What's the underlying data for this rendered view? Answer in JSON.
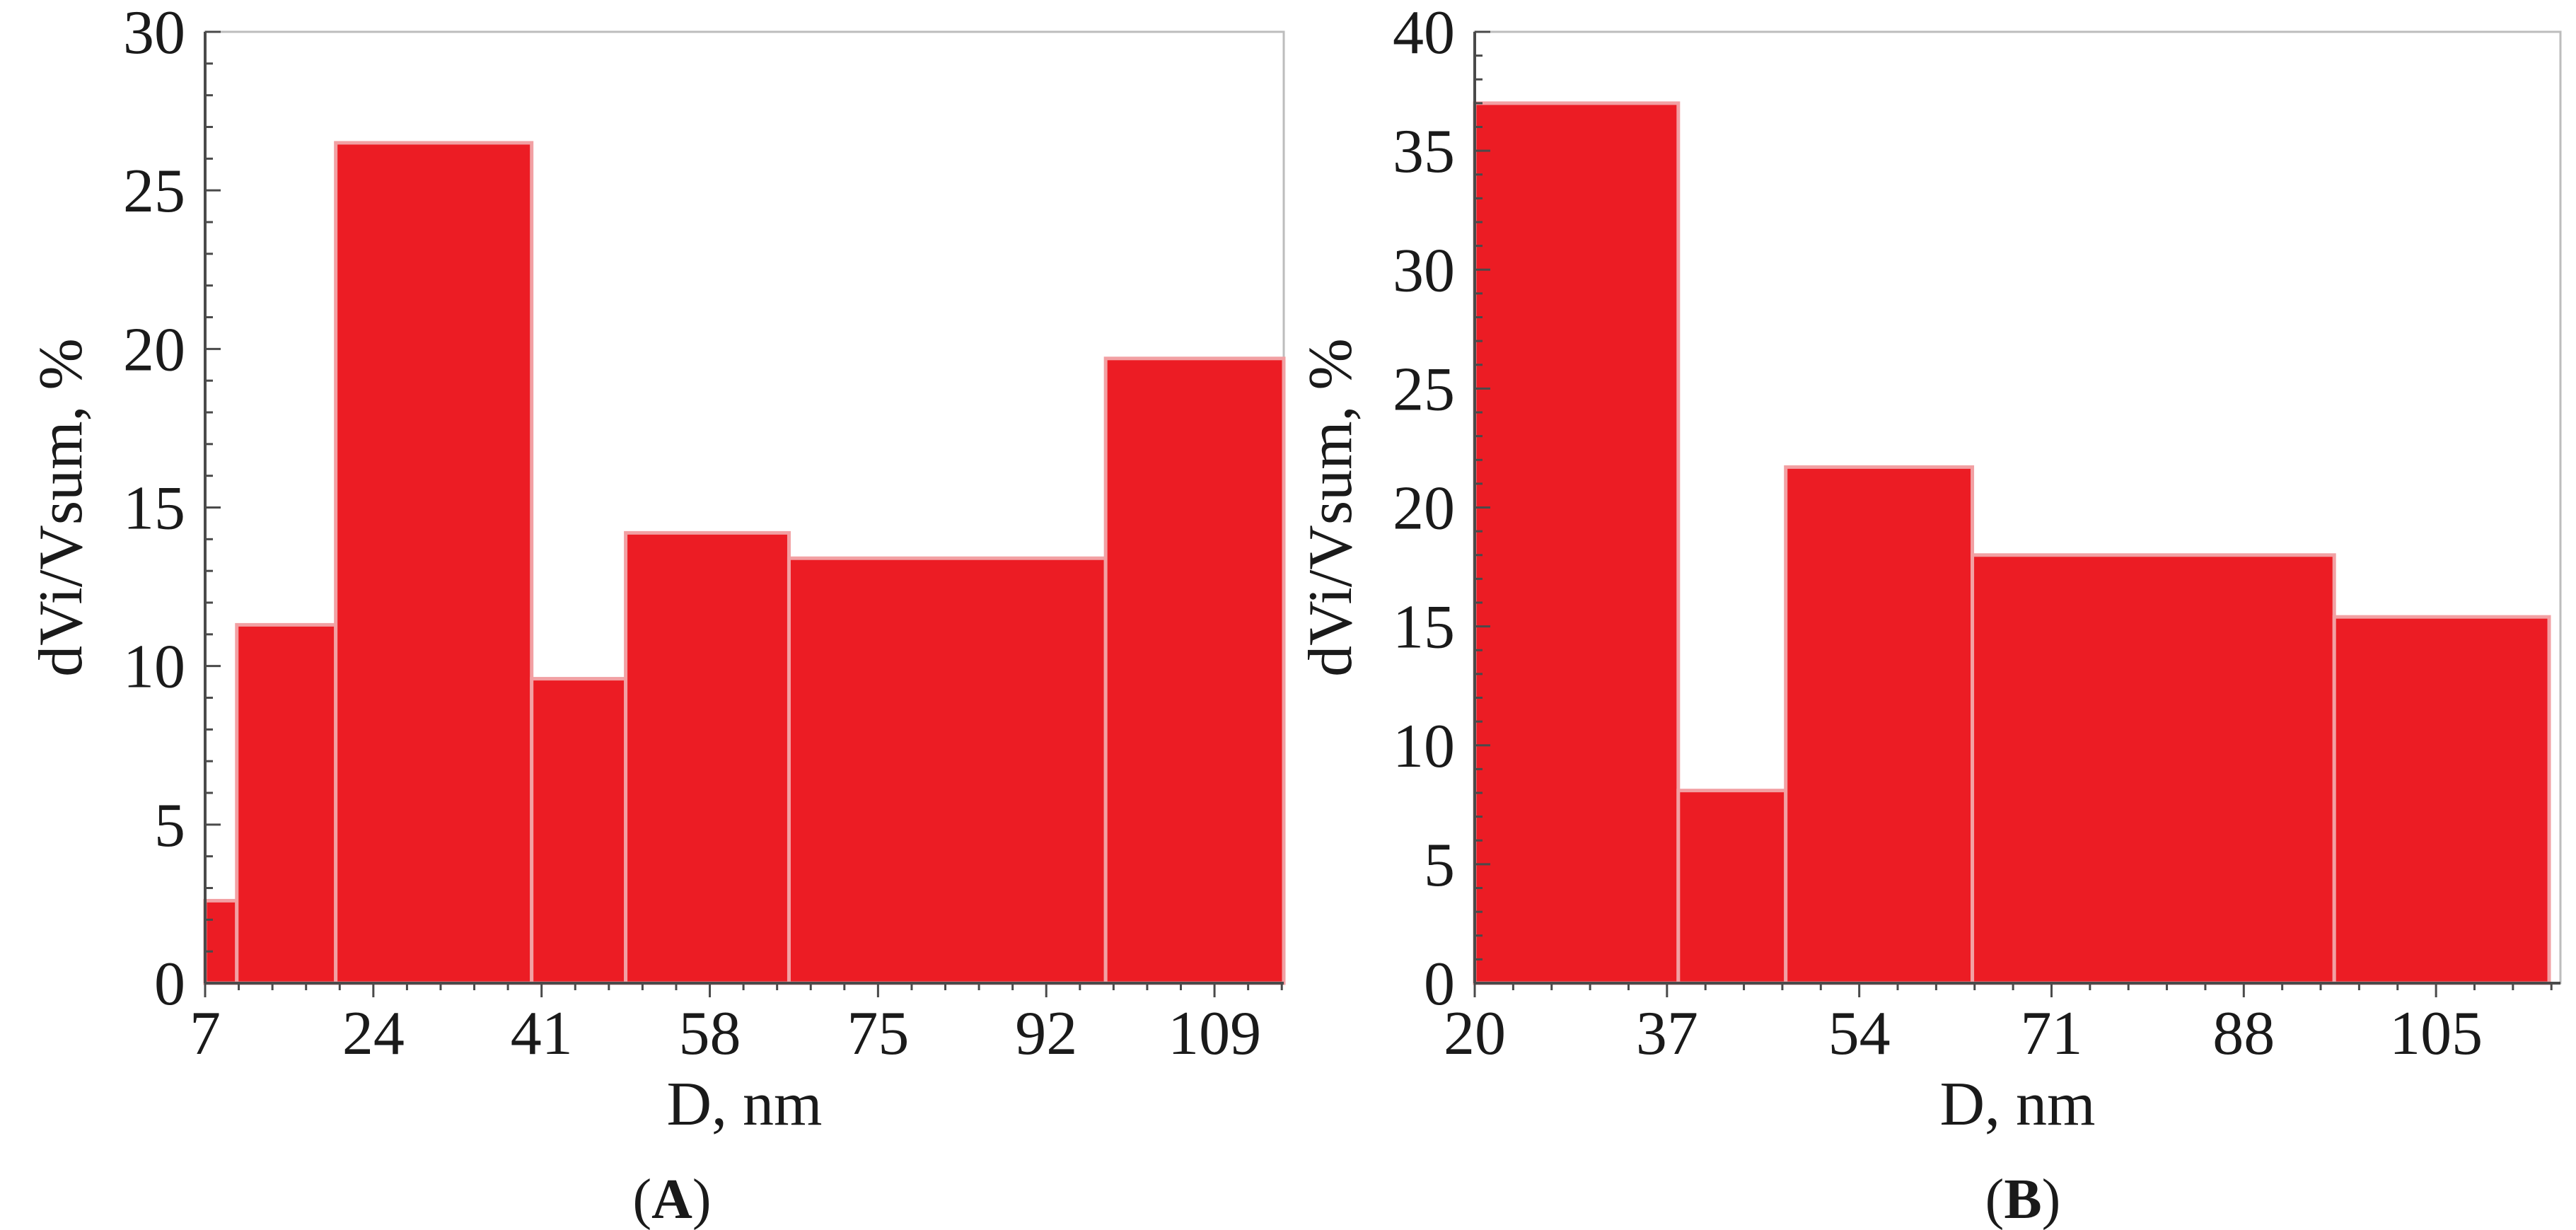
{
  "figure": {
    "panels": [
      {
        "label_open": "(",
        "label_letter": "A",
        "label_close": ")"
      },
      {
        "label_open": "(",
        "label_letter": "B",
        "label_close": ")"
      }
    ]
  },
  "chart_data": [
    {
      "type": "bar",
      "title": "",
      "xlabel": "D, nm",
      "ylabel": "dVi/Vsum, %",
      "xlim": [
        7,
        116
      ],
      "ylim": [
        0,
        30
      ],
      "xticks": [
        7,
        24,
        41,
        58,
        75,
        92,
        109
      ],
      "yticks": [
        0,
        5,
        10,
        15,
        20,
        25,
        30
      ],
      "bar_color": "#ec1c24",
      "bars": [
        {
          "x0": 7,
          "x1": 10.2,
          "value": 2.6
        },
        {
          "x0": 10.2,
          "x1": 20.2,
          "value": 11.3
        },
        {
          "x0": 20.2,
          "x1": 40.0,
          "value": 26.5
        },
        {
          "x0": 40.0,
          "x1": 49.5,
          "value": 9.6
        },
        {
          "x0": 49.5,
          "x1": 66.0,
          "value": 14.2
        },
        {
          "x0": 66.0,
          "x1": 98.0,
          "value": 13.4
        },
        {
          "x0": 98.0,
          "x1": 116.0,
          "value": 19.7
        }
      ]
    },
    {
      "type": "bar",
      "title": "",
      "xlabel": "D, nm",
      "ylabel": "dVi/Vsum, %",
      "xlim": [
        20,
        116
      ],
      "ylim": [
        0,
        40
      ],
      "xticks": [
        20,
        37,
        54,
        71,
        88,
        105
      ],
      "yticks": [
        0,
        5,
        10,
        15,
        20,
        25,
        30,
        35,
        40
      ],
      "bar_color": "#ec1c24",
      "bars": [
        {
          "x0": 20.0,
          "x1": 38.0,
          "value": 37.0
        },
        {
          "x0": 38.0,
          "x1": 47.5,
          "value": 8.1
        },
        {
          "x0": 47.5,
          "x1": 64.0,
          "value": 21.7
        },
        {
          "x0": 64.0,
          "x1": 96.0,
          "value": 18.0
        },
        {
          "x0": 96.0,
          "x1": 115.0,
          "value": 15.4
        }
      ]
    }
  ]
}
